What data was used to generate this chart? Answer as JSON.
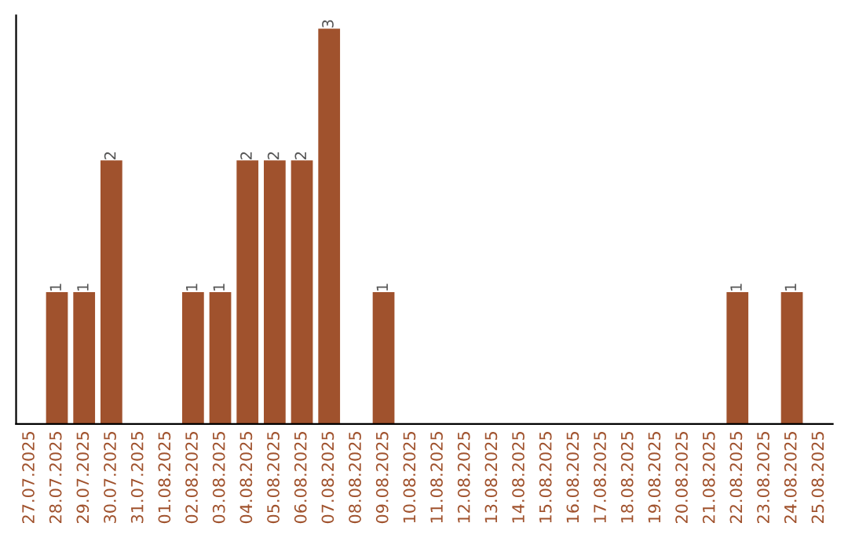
{
  "chart_data": {
    "type": "bar",
    "categories": [
      "27.07.2025",
      "28.07.2025",
      "29.07.2025",
      "30.07.2025",
      "31.07.2025",
      "01.08.2025",
      "02.08.2025",
      "03.08.2025",
      "04.08.2025",
      "05.08.2025",
      "06.08.2025",
      "07.08.2025",
      "08.08.2025",
      "09.08.2025",
      "10.08.2025",
      "11.08.2025",
      "12.08.2025",
      "13.08.2025",
      "14.08.2025",
      "15.08.2025",
      "16.08.2025",
      "17.08.2025",
      "18.08.2025",
      "19.08.2025",
      "20.08.2025",
      "21.08.2025",
      "22.08.2025",
      "23.08.2025",
      "24.08.2025",
      "25.08.2025"
    ],
    "values": [
      0,
      1,
      1,
      2,
      0,
      0,
      1,
      1,
      2,
      2,
      2,
      3,
      0,
      1,
      0,
      0,
      0,
      0,
      0,
      0,
      0,
      0,
      0,
      0,
      0,
      0,
      1,
      0,
      1,
      0
    ],
    "value_labels": [
      null,
      "1",
      "1",
      "2",
      null,
      null,
      "1",
      "1",
      "2",
      "2",
      "2",
      "3",
      null,
      "1",
      null,
      null,
      null,
      null,
      null,
      null,
      null,
      null,
      null,
      null,
      null,
      null,
      "1",
      null,
      "1",
      null
    ],
    "color": "#a0522d",
    "ylim": [
      0,
      3.1
    ],
    "tick_labels": "x",
    "grid": false
  }
}
